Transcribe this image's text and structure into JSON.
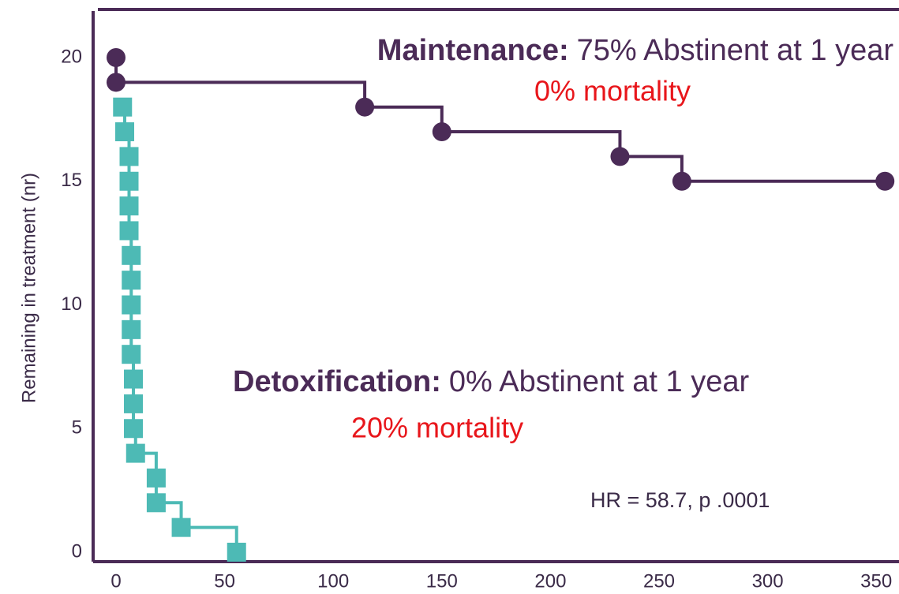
{
  "chart_data": {
    "type": "line",
    "step": true,
    "y_label": "Remaining in treatment  (nr)",
    "xlim": [
      0,
      368
    ],
    "ylim": [
      0,
      21
    ],
    "xticks": [
      0,
      50,
      100,
      150,
      200,
      250,
      300,
      350
    ],
    "yticks": [
      0,
      5,
      10,
      15,
      20
    ],
    "grid": false,
    "series": [
      {
        "name": "Maintenance",
        "color": "#4b2b57",
        "marker": "circle",
        "x": [
          0,
          0,
          114.5,
          150,
          232,
          260.5,
          354
        ],
        "values": [
          20,
          19,
          18,
          17,
          16,
          15,
          15
        ]
      },
      {
        "name": "Detoxification",
        "color": "#4dbab5",
        "marker": "square",
        "x": [
          3,
          4,
          6,
          6,
          6,
          6,
          7,
          7,
          7,
          7,
          7,
          8,
          8,
          8,
          9,
          18.5,
          18.5,
          30,
          55.5
        ],
        "values": [
          18,
          17,
          16,
          15,
          14,
          13,
          12,
          11,
          10,
          9,
          8,
          7,
          6,
          5,
          4,
          3,
          2,
          1,
          0
        ]
      }
    ],
    "annotations": [
      {
        "label": "Maintenance:",
        "text": "75% Abstinent at 1 year"
      },
      {
        "text": "0% mortality"
      },
      {
        "label": "Detoxification:",
        "text": "0% Abstinent at 1 year"
      },
      {
        "text": "20% mortality"
      },
      {
        "text": "HR = 58.7, p .0001"
      }
    ]
  }
}
